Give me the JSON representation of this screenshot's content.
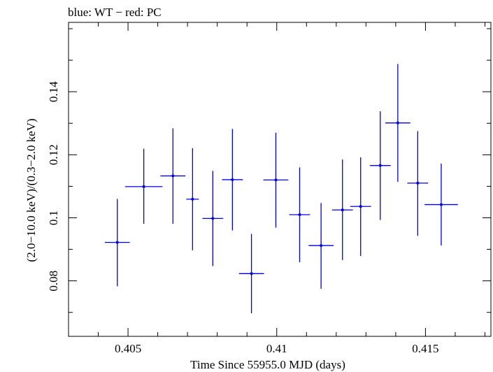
{
  "chart_data": {
    "type": "scatter",
    "title": "blue: WT − red: PC",
    "xlabel": "Time Since 55955.0 MJD (days)",
    "ylabel": "(2.0−10.0 keV)/(0.3−2.0 keV)",
    "xlim": [
      0.403,
      0.4172
    ],
    "ylim": [
      0.0624,
      0.162
    ],
    "x_ticks": [
      {
        "value": 0.405,
        "label": "0.405"
      },
      {
        "value": 0.41,
        "label": "0.41"
      },
      {
        "value": 0.415,
        "label": "0.415"
      }
    ],
    "y_ticks": [
      {
        "value": 0.08,
        "label": "0.08"
      },
      {
        "value": 0.1,
        "label": "0.1"
      },
      {
        "value": 0.12,
        "label": "0.12"
      },
      {
        "value": 0.14,
        "label": "0.14"
      }
    ],
    "x_minor_step": 0.001,
    "y_minor_step": 0.01,
    "grid": false,
    "series": [
      {
        "color": "#0000dd",
        "points": [
          {
            "x": 0.40464,
            "y": 0.0922,
            "xerr": 0.00042,
            "ylo": 0.0783,
            "yhi": 0.106
          },
          {
            "x": 0.40553,
            "y": 0.1099,
            "xerr": 0.00063,
            "ylo": 0.0981,
            "yhi": 0.1219
          },
          {
            "x": 0.40651,
            "y": 0.1133,
            "xerr": 0.00042,
            "ylo": 0.0981,
            "yhi": 0.1284
          },
          {
            "x": 0.40717,
            "y": 0.1059,
            "xerr": 0.00021,
            "ylo": 0.0897,
            "yhi": 0.1221
          },
          {
            "x": 0.40785,
            "y": 0.0998,
            "xerr": 0.00035,
            "ylo": 0.0847,
            "yhi": 0.1149
          },
          {
            "x": 0.40851,
            "y": 0.1121,
            "xerr": 0.00035,
            "ylo": 0.096,
            "yhi": 0.1282
          },
          {
            "x": 0.40915,
            "y": 0.0823,
            "xerr": 0.00042,
            "ylo": 0.0697,
            "yhi": 0.0949
          },
          {
            "x": 0.40997,
            "y": 0.112,
            "xerr": 0.00042,
            "ylo": 0.0969,
            "yhi": 0.127
          },
          {
            "x": 0.41077,
            "y": 0.101,
            "xerr": 0.00035,
            "ylo": 0.0859,
            "yhi": 0.116
          },
          {
            "x": 0.41149,
            "y": 0.0912,
            "xerr": 0.00042,
            "ylo": 0.0775,
            "yhi": 0.1047
          },
          {
            "x": 0.41221,
            "y": 0.1025,
            "xerr": 0.00035,
            "ylo": 0.0866,
            "yhi": 0.1185
          },
          {
            "x": 0.41282,
            "y": 0.1036,
            "xerr": 0.00035,
            "ylo": 0.0879,
            "yhi": 0.1192
          },
          {
            "x": 0.41348,
            "y": 0.1166,
            "xerr": 0.00035,
            "ylo": 0.0993,
            "yhi": 0.1338
          },
          {
            "x": 0.41407,
            "y": 0.1301,
            "xerr": 0.00042,
            "ylo": 0.1114,
            "yhi": 0.1488
          },
          {
            "x": 0.41474,
            "y": 0.111,
            "xerr": 0.00035,
            "ylo": 0.0943,
            "yhi": 0.1275
          },
          {
            "x": 0.41553,
            "y": 0.1042,
            "xerr": 0.00056,
            "ylo": 0.0912,
            "yhi": 0.1172
          }
        ]
      }
    ]
  }
}
